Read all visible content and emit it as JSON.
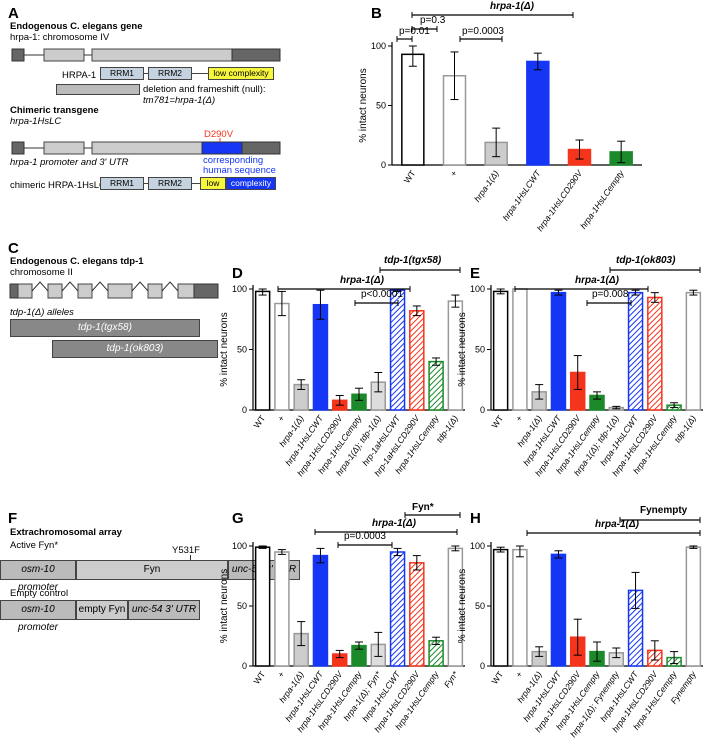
{
  "panels": {
    "A": "A",
    "B": "B",
    "C": "C",
    "D": "D",
    "E": "E",
    "F": "F",
    "G": "G",
    "H": "H"
  },
  "panel_a": {
    "title": "Endogenous C. elegans gene",
    "gene_line": "hrpa-1: chromosome IV",
    "protein": "HRPA-1",
    "rrm1": "RRM1",
    "rrm2": "RRM2",
    "lowc": "low complexity",
    "deletion": "deletion and frameshift (null):",
    "allele": "tm781=hrpa-1(Δ)",
    "chimeric_title": "Chimeric transgene",
    "chimeric_gene": "hrpa-1HsLC",
    "mutation": "D290V",
    "promoter": "hrpa-1 promoter and 3' UTR",
    "corresponding1": "corresponding",
    "corresponding2": "human sequence",
    "chimeric_protein": "chimeric HRPA-1HsLC",
    "low": "low",
    "complexity": "complexity"
  },
  "panel_c": {
    "title": "Endogenous C. elegans tdp-1",
    "chrom": "chromosome II",
    "alleles": "tdp-1(Δ) alleles",
    "allele1": "tdp-1(tgx58)",
    "allele2": "tdp-1(ok803)"
  },
  "panel_f": {
    "title": "Extrachromosomal array",
    "active": "Active Fyn*",
    "mut": "Y531F",
    "promoter": "osm-10 promoter",
    "fyn": "Fyn",
    "utr": "unc-54 3' UTR",
    "empty_ctrl": "Empty control",
    "empty_fyn": "empty Fyn"
  },
  "colors": {
    "blue": "#1536f5",
    "red": "#f5341c",
    "green": "#1c8a2a",
    "gray": "#bbbbbb",
    "yellow": "#f6f63c",
    "rrm": "#c4d3df"
  },
  "chart_data": [
    {
      "id": "B",
      "type": "bar",
      "ylabel": "% intact neurons",
      "yticks": [
        "0",
        "50",
        "100"
      ],
      "ylim": [
        0,
        100
      ],
      "categories": [
        "WT",
        "+",
        "hrpa-1(Δ)",
        "hrpa-1HsLCWT",
        "hrpa-1HsLCD290V",
        "hrpa-1HsLCempty"
      ],
      "values": [
        93,
        75,
        19,
        87,
        13,
        11
      ],
      "annotations": [
        "hrpa-1(Δ)",
        "p=0.3",
        "p=0.01",
        "p=0.0003"
      ]
    },
    {
      "id": "D",
      "type": "bar",
      "ylabel": "% intact neurons",
      "yticks": [
        "0",
        "50",
        "100"
      ],
      "ylim": [
        0,
        100
      ],
      "categories": [
        "WT",
        "+",
        "hrpa-1(Δ)",
        "hrpa-1HsLCWT",
        "hrpa-1HsLCD290V",
        "hrpa-1HsLCempty",
        "hrpa-1(Δ); tdp-1(Δ)",
        "hrp-1aHsLCWT",
        "hrp-1aHsLCD290V",
        "hrpa-1HsLCempty",
        "tdp-1(Δ)"
      ],
      "values": [
        98,
        88,
        21,
        87,
        8,
        13,
        23,
        99,
        82,
        40,
        90
      ],
      "annotations": [
        "tdp-1(tgx58)",
        "hrpa-1(Δ)",
        "p<0.0001"
      ]
    },
    {
      "id": "E",
      "type": "bar",
      "ylabel": "% intact neurons",
      "yticks": [
        "0",
        "50",
        "100"
      ],
      "ylim": [
        0,
        100
      ],
      "categories": [
        "WT",
        "+",
        "hrpa-1(Δ)",
        "hrpa-1HsLCWT",
        "hrpa-1HsLCD290V",
        "hrpa-1HsLCempty",
        "hrpa-1(Δ); tdp-1(Δ)",
        "hrpa-1HsLCWT",
        "hrpa-1HsLCD290V",
        "hrpa-1HsLCempty",
        "tdp-1(Δ)"
      ],
      "values": [
        98,
        100,
        15,
        97,
        31,
        12,
        2,
        97,
        93,
        4,
        97
      ],
      "annotations": [
        "tdp-1(ok803)",
        "hrpa-1(Δ)",
        "p=0.008"
      ]
    },
    {
      "id": "G",
      "type": "bar",
      "ylabel": "% intact neurons",
      "yticks": [
        "0",
        "50",
        "100"
      ],
      "ylim": [
        0,
        100
      ],
      "categories": [
        "WT",
        "+",
        "hrpa-1(Δ)",
        "hrpa-1HsLCWT",
        "hrpa-1HsLCD290V",
        "hrpa-1HsLCempty",
        "hrpa-1(Δ); Fyn*",
        "hrpa-1HsLCWT",
        "hrpa-1HsLCD290V",
        "hrpa-1HsLCempty",
        "Fyn*"
      ],
      "values": [
        99,
        95,
        27,
        92,
        10,
        17,
        18,
        95,
        86,
        21,
        98
      ],
      "annotations": [
        "Fyn*",
        "hrpa-1(Δ)",
        "p=0.0003"
      ]
    },
    {
      "id": "H",
      "type": "bar",
      "ylabel": "% intact neurons",
      "yticks": [
        "0",
        "50",
        "100"
      ],
      "ylim": [
        0,
        100
      ],
      "categories": [
        "WT",
        "+",
        "hrpa-1(Δ)",
        "hrpa-1HsLCWT",
        "hrpa-1HsLCD290V",
        "hrpa-1HsLCempty",
        "hrpa-1(Δ); Fynempty",
        "hrpa-1HsLCWT",
        "hrpa-1HsLCD290V",
        "hrpa-1HsLCempty",
        "Fynempty"
      ],
      "values": [
        97,
        97,
        12,
        93,
        24,
        12,
        11,
        63,
        13,
        7,
        99
      ],
      "annotations": [
        "Fynempty",
        "hrpa-1(Δ)"
      ]
    }
  ]
}
